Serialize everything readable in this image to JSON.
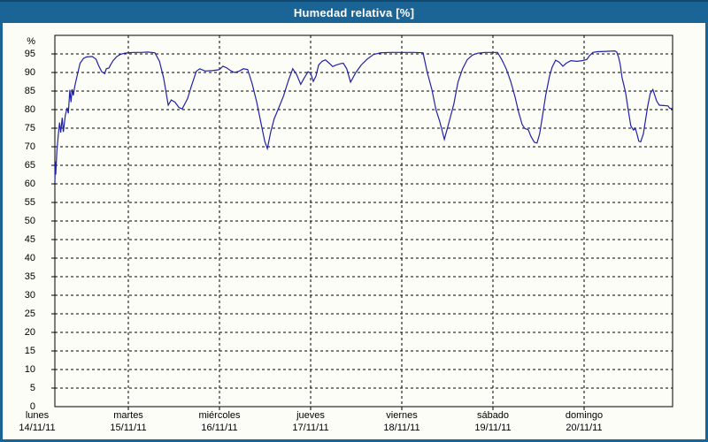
{
  "window": {
    "title": "Humedad relativa [%]"
  },
  "colors": {
    "frame": "#1b6496",
    "titlebar": "#1b6496",
    "title_text": "#ffffff",
    "panel_bg": "#fcfdf7",
    "line": "#2121a8",
    "grid": "#000000",
    "axis": "#000000",
    "label_text": "#000000"
  },
  "y_axis": {
    "unit_label": "%",
    "min": 0,
    "max": 100,
    "tick_step": 5,
    "tick_labels": [
      "0",
      "5",
      "10",
      "15",
      "20",
      "25",
      "30",
      "35",
      "40",
      "45",
      "50",
      "55",
      "60",
      "65",
      "70",
      "75",
      "80",
      "85",
      "90",
      "95"
    ]
  },
  "x_axis": {
    "days": [
      {
        "name": "lunes",
        "date": "14/11/11"
      },
      {
        "name": "martes",
        "date": "15/11/11"
      },
      {
        "name": "miércoles",
        "date": "16/11/11"
      },
      {
        "name": "jueves",
        "date": "17/11/11"
      },
      {
        "name": "viernes",
        "date": "18/11/11"
      },
      {
        "name": "sábado",
        "date": "19/11/11"
      },
      {
        "name": "domingo",
        "date": "20/11/11"
      }
    ]
  },
  "chart_data": {
    "type": "line",
    "title": "Humedad relativa [%]",
    "ylabel": "%",
    "ylim": [
      0,
      100
    ],
    "grid": "dashed",
    "legend": "none",
    "x_unit": "hours since Monday 14/11/11 00:00",
    "x_range_hours": [
      4.66,
      167.2
    ],
    "day_boundary_hours": [
      24,
      48,
      72,
      96,
      120,
      144
    ],
    "series": [
      {
        "name": "Humedad relativa",
        "color": "#2121a8",
        "points": [
          [
            4.66,
            60.3
          ],
          [
            4.8,
            66.0
          ],
          [
            4.9,
            62.5
          ],
          [
            5.2,
            69.0
          ],
          [
            5.6,
            73.5
          ],
          [
            5.9,
            76.5
          ],
          [
            6.2,
            73.8
          ],
          [
            6.6,
            77.8
          ],
          [
            6.9,
            74.0
          ],
          [
            7.4,
            78.5
          ],
          [
            7.9,
            80.5
          ],
          [
            8.2,
            79.0
          ],
          [
            8.6,
            85.3
          ],
          [
            8.9,
            82.0
          ],
          [
            9.2,
            85.5
          ],
          [
            9.5,
            83.8
          ],
          [
            9.9,
            86.3
          ],
          [
            10.6,
            89.5
          ],
          [
            11.3,
            92.5
          ],
          [
            12.2,
            93.8
          ],
          [
            13.0,
            94.2
          ],
          [
            14.5,
            94.3
          ],
          [
            15.5,
            93.6
          ],
          [
            16.2,
            91.8
          ],
          [
            17.0,
            90.2
          ],
          [
            17.8,
            89.7
          ],
          [
            18.2,
            91.0
          ],
          [
            18.9,
            91.2
          ],
          [
            19.3,
            92.0
          ],
          [
            20.0,
            93.2
          ],
          [
            21.0,
            94.3
          ],
          [
            22.0,
            94.9
          ],
          [
            23.0,
            95.2
          ],
          [
            24.0,
            95.3
          ],
          [
            25.5,
            95.4
          ],
          [
            27.5,
            95.4
          ],
          [
            29.0,
            95.5
          ],
          [
            31.0,
            95.3
          ],
          [
            32.2,
            93.0
          ],
          [
            33.3,
            88.5
          ],
          [
            34.5,
            81.2
          ],
          [
            35.3,
            82.6
          ],
          [
            36.3,
            82.0
          ],
          [
            37.3,
            80.6
          ],
          [
            38.2,
            80.2
          ],
          [
            39.6,
            83.0
          ],
          [
            40.5,
            86.0
          ],
          [
            41.9,
            90.3
          ],
          [
            42.8,
            91.0
          ],
          [
            44.2,
            90.4
          ],
          [
            46.1,
            90.5
          ],
          [
            47.5,
            90.7
          ],
          [
            48.0,
            90.8
          ],
          [
            48.9,
            91.7
          ],
          [
            49.8,
            91.3
          ],
          [
            50.8,
            90.6
          ],
          [
            51.9,
            90.0
          ],
          [
            53.1,
            90.3
          ],
          [
            54.3,
            91.0
          ],
          [
            55.4,
            90.8
          ],
          [
            56.6,
            87.0
          ],
          [
            57.8,
            82.0
          ],
          [
            58.9,
            76.5
          ],
          [
            59.9,
            71.5
          ],
          [
            60.6,
            69.5
          ],
          [
            61.5,
            74.0
          ],
          [
            62.4,
            77.5
          ],
          [
            63.6,
            80.5
          ],
          [
            64.8,
            83.5
          ],
          [
            66.2,
            88.0
          ],
          [
            67.3,
            91.0
          ],
          [
            68.3,
            89.5
          ],
          [
            69.4,
            86.8
          ],
          [
            70.3,
            88.5
          ],
          [
            71.3,
            90.2
          ],
          [
            72.0,
            89.8
          ],
          [
            72.7,
            87.6
          ],
          [
            73.4,
            89.0
          ],
          [
            74.1,
            92.0
          ],
          [
            75.0,
            93.0
          ],
          [
            75.9,
            93.4
          ],
          [
            76.9,
            92.5
          ],
          [
            77.8,
            91.6
          ],
          [
            78.7,
            92.0
          ],
          [
            79.9,
            92.4
          ],
          [
            80.6,
            92.5
          ],
          [
            81.5,
            91.0
          ],
          [
            82.5,
            87.4
          ],
          [
            83.9,
            90.0
          ],
          [
            85.3,
            92.0
          ],
          [
            86.9,
            93.6
          ],
          [
            88.5,
            94.8
          ],
          [
            90.4,
            95.3
          ],
          [
            93.0,
            95.4
          ],
          [
            96.0,
            95.4
          ],
          [
            99.0,
            95.4
          ],
          [
            101.6,
            95.3
          ],
          [
            102.7,
            90.0
          ],
          [
            103.9,
            85.5
          ],
          [
            105.0,
            80.0
          ],
          [
            106.0,
            76.8
          ],
          [
            107.2,
            72.0
          ],
          [
            108.5,
            76.8
          ],
          [
            109.7,
            81.5
          ],
          [
            110.8,
            87.4
          ],
          [
            112.0,
            91.0
          ],
          [
            113.2,
            93.4
          ],
          [
            114.6,
            94.7
          ],
          [
            116.0,
            95.2
          ],
          [
            118.0,
            95.4
          ],
          [
            120.0,
            95.4
          ],
          [
            121.2,
            95.4
          ],
          [
            122.3,
            93.5
          ],
          [
            123.5,
            91.0
          ],
          [
            124.7,
            87.5
          ],
          [
            125.8,
            83.5
          ],
          [
            126.7,
            79.5
          ],
          [
            127.7,
            76.0
          ],
          [
            128.4,
            74.9
          ],
          [
            129.3,
            74.6
          ],
          [
            130.0,
            72.8
          ],
          [
            130.9,
            71.2
          ],
          [
            131.6,
            71.0
          ],
          [
            132.3,
            73.5
          ],
          [
            133.0,
            78.0
          ],
          [
            133.9,
            84.0
          ],
          [
            134.9,
            89.0
          ],
          [
            135.6,
            91.5
          ],
          [
            136.5,
            93.3
          ],
          [
            137.4,
            92.8
          ],
          [
            138.4,
            91.7
          ],
          [
            139.3,
            92.5
          ],
          [
            140.5,
            93.2
          ],
          [
            142.1,
            93.0
          ],
          [
            143.5,
            93.2
          ],
          [
            144.7,
            93.5
          ],
          [
            145.4,
            94.5
          ],
          [
            146.3,
            95.4
          ],
          [
            147.5,
            95.6
          ],
          [
            149.8,
            95.7
          ],
          [
            152.1,
            95.8
          ],
          [
            152.6,
            95.5
          ],
          [
            153.1,
            94.0
          ],
          [
            153.5,
            92.2
          ],
          [
            154.0,
            88.6
          ],
          [
            154.9,
            84.7
          ],
          [
            155.6,
            80.0
          ],
          [
            156.3,
            75.6
          ],
          [
            157.0,
            74.5
          ],
          [
            157.5,
            74.9
          ],
          [
            157.9,
            73.5
          ],
          [
            158.4,
            71.5
          ],
          [
            158.9,
            71.3
          ],
          [
            159.6,
            73.5
          ],
          [
            160.7,
            80.7
          ],
          [
            161.4,
            84.3
          ],
          [
            162.1,
            85.4
          ],
          [
            163.1,
            82.3
          ],
          [
            163.8,
            81.2
          ],
          [
            164.9,
            81.1
          ],
          [
            166.1,
            81.0
          ],
          [
            166.5,
            80.4
          ],
          [
            167.2,
            80.2
          ]
        ]
      }
    ]
  }
}
